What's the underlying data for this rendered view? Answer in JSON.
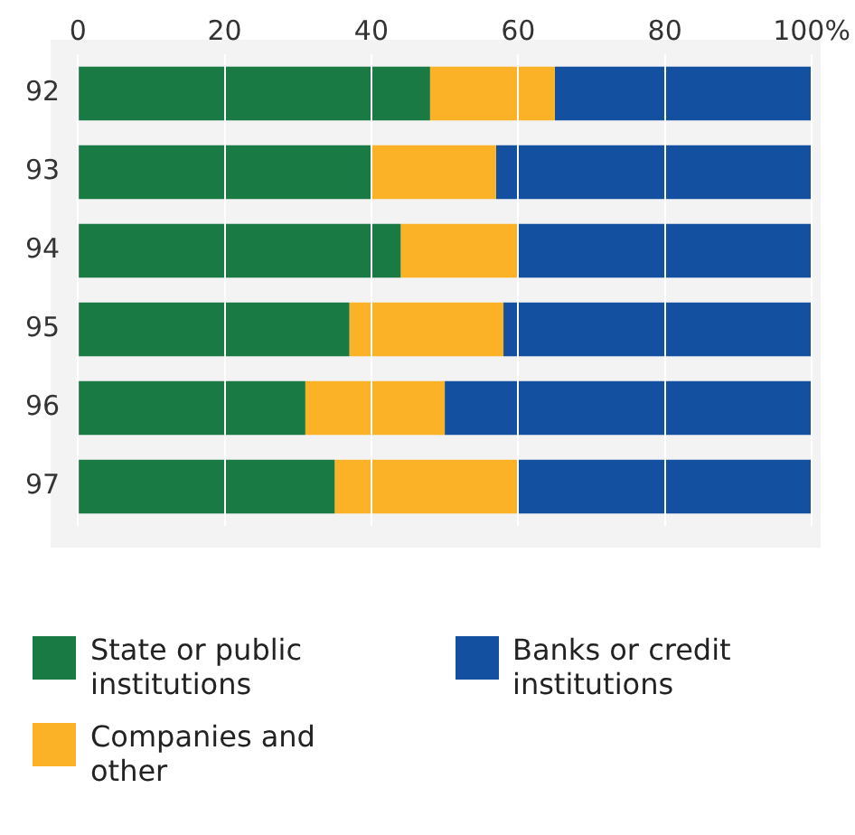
{
  "chart_data": {
    "type": "bar",
    "orientation": "horizontal",
    "stacked": true,
    "categories": [
      "92",
      "93",
      "94",
      "95",
      "96",
      "97"
    ],
    "series": [
      {
        "name": "State or public institutions",
        "color": "#1a7a44",
        "values": [
          48,
          40,
          44,
          37,
          31,
          35
        ]
      },
      {
        "name": "Companies and other",
        "color": "#fbb226",
        "values": [
          17,
          17,
          16,
          21,
          19,
          25
        ]
      },
      {
        "name": "Banks or credit institutions",
        "color": "#1450a0",
        "values": [
          35,
          43,
          40,
          42,
          50,
          40
        ]
      }
    ],
    "xlim": [
      0,
      100
    ],
    "xticks": [
      0,
      20,
      40,
      60,
      {
        "value": 100,
        "label": "100%"
      },
      80
    ],
    "grid": "x",
    "legend": "bottom"
  }
}
